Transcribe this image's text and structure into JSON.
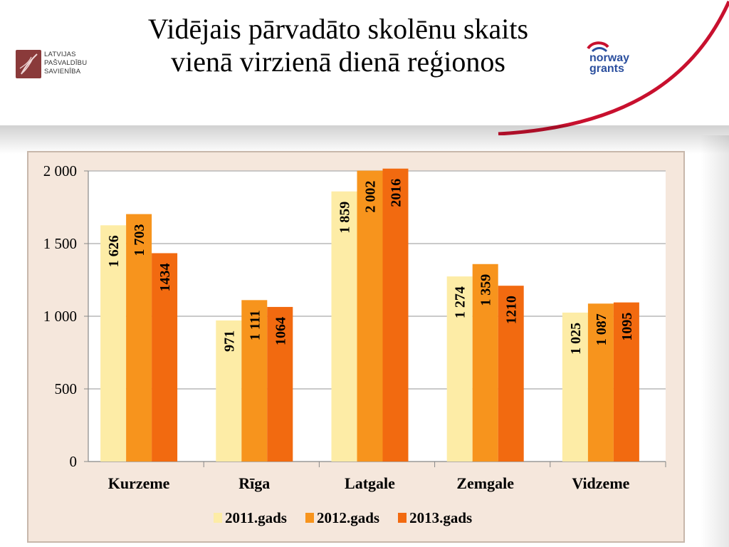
{
  "slide": {
    "title_line1": "Vidējais pārvadāto skolēnu skaits",
    "title_line2": "vienā virzienā dienā reģionos",
    "logo_left": [
      "LATVIJAS",
      "PAŠVALDĪBU",
      "SAVIENĪBA"
    ],
    "logo_right": [
      "norway",
      "grants"
    ]
  },
  "chart_data": {
    "type": "bar",
    "title": "",
    "xlabel": "",
    "ylabel": "",
    "categories": [
      "Kurzeme",
      "Rīga",
      "Latgale",
      "Zemgale",
      "Vidzeme"
    ],
    "series": [
      {
        "name": "2011.gads",
        "color": "#fdeca6",
        "values": [
          1626,
          971,
          1859,
          1274,
          1025
        ],
        "labels": [
          "1 626",
          "971",
          "1 859",
          "1 274",
          "1 025"
        ]
      },
      {
        "name": "2012.gads",
        "color": "#f7941d",
        "values": [
          1703,
          1111,
          2002,
          1359,
          1087
        ],
        "labels": [
          "1 703",
          "1 111",
          "2 002",
          "1 359",
          "1 087"
        ]
      },
      {
        "name": "2013.gads",
        "color": "#f26a10",
        "values": [
          1434,
          1064,
          2016,
          1210,
          1095
        ],
        "labels": [
          "1434",
          "1064",
          "2016",
          "1210",
          "1095"
        ]
      }
    ],
    "ylim": [
      0,
      2000
    ],
    "yticks": [
      0,
      500,
      1000,
      1500,
      2000
    ],
    "ytick_labels": [
      "0",
      "500",
      "1 000",
      "1 500",
      "2 000"
    ],
    "grid": true,
    "legend_position": "bottom",
    "plot_background": "#ffffff",
    "frame_background": "#f5e7dc"
  }
}
